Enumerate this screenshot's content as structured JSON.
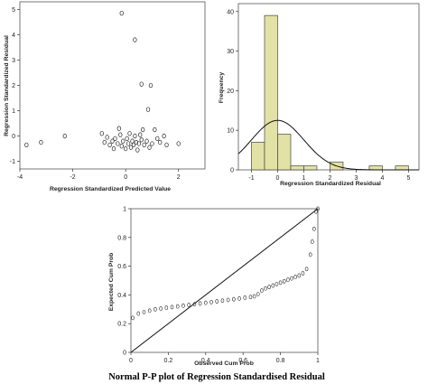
{
  "caption": "Normal P-P plot of Regression Standardised Residual",
  "chart_data": [
    {
      "type": "scatter",
      "xlabel": "Regression Standardized Predicted Value",
      "ylabel": "Regression Standardized Residual",
      "xlim": [
        -4,
        3
      ],
      "ylim": [
        -1.3,
        5.3
      ],
      "xticks": [
        -4,
        -2,
        0,
        2
      ],
      "yticks": [
        -1,
        0,
        1,
        2,
        3,
        4,
        5
      ],
      "marker": "open-circle",
      "points": [
        [
          -0.15,
          4.85
        ],
        [
          0.35,
          3.8
        ],
        [
          0.6,
          2.05
        ],
        [
          0.95,
          2.0
        ],
        [
          0.85,
          1.05
        ],
        [
          -3.75,
          -0.35
        ],
        [
          -3.2,
          -0.25
        ],
        [
          -2.3,
          0.0
        ],
        [
          -0.9,
          0.1
        ],
        [
          -0.8,
          -0.25
        ],
        [
          -0.7,
          -0.05
        ],
        [
          -0.6,
          -0.35
        ],
        [
          -0.5,
          -0.2
        ],
        [
          -0.45,
          -0.5
        ],
        [
          -0.4,
          -0.1
        ],
        [
          -0.3,
          -0.3
        ],
        [
          -0.2,
          0.05
        ],
        [
          -0.15,
          -0.4
        ],
        [
          -0.1,
          -0.2
        ],
        [
          0.0,
          -0.5
        ],
        [
          0.05,
          -0.1
        ],
        [
          0.1,
          -0.3
        ],
        [
          0.15,
          0.1
        ],
        [
          0.2,
          -0.45
        ],
        [
          0.25,
          -0.2
        ],
        [
          0.3,
          -0.35
        ],
        [
          0.35,
          0.0
        ],
        [
          0.4,
          -0.25
        ],
        [
          0.45,
          -0.55
        ],
        [
          0.5,
          -0.3
        ],
        [
          0.55,
          0.05
        ],
        [
          0.6,
          -0.15
        ],
        [
          0.7,
          -0.35
        ],
        [
          0.8,
          -0.2
        ],
        [
          0.9,
          -0.45
        ],
        [
          1.0,
          -0.3
        ],
        [
          1.1,
          0.25
        ],
        [
          1.2,
          -0.1
        ],
        [
          1.3,
          -0.25
        ],
        [
          1.45,
          0.0
        ],
        [
          1.55,
          -0.35
        ],
        [
          2.0,
          -0.3
        ],
        [
          -0.25,
          0.3
        ],
        [
          0.65,
          0.25
        ]
      ]
    },
    {
      "type": "bar",
      "subtype": "histogram-with-normal-curve",
      "xlabel": "Regression Standardized Residual",
      "ylabel": "Frequency",
      "xlim": [
        -1.5,
        5.4
      ],
      "ylim": [
        0,
        42
      ],
      "xticks": [
        -1,
        0,
        1,
        2,
        3,
        4,
        5
      ],
      "yticks": [
        0,
        10,
        20,
        30,
        40
      ],
      "bar_color": "#e2e2a4",
      "bins": [
        {
          "start": -1.0,
          "end": -0.5,
          "value": 7
        },
        {
          "start": -0.5,
          "end": 0.0,
          "value": 39
        },
        {
          "start": 0.0,
          "end": 0.5,
          "value": 9
        },
        {
          "start": 0.5,
          "end": 1.0,
          "value": 1
        },
        {
          "start": 1.0,
          "end": 1.5,
          "value": 1
        },
        {
          "start": 1.5,
          "end": 2.0,
          "value": 0
        },
        {
          "start": 2.0,
          "end": 2.5,
          "value": 2
        },
        {
          "start": 2.5,
          "end": 3.0,
          "value": 0
        },
        {
          "start": 3.0,
          "end": 3.5,
          "value": 0
        },
        {
          "start": 3.5,
          "end": 4.0,
          "value": 1
        },
        {
          "start": 4.0,
          "end": 4.5,
          "value": 0
        },
        {
          "start": 4.5,
          "end": 5.0,
          "value": 1
        }
      ],
      "normal_curve": {
        "mean": 0.0,
        "sd": 1.0,
        "peak": 12.5
      }
    },
    {
      "type": "line",
      "subtype": "normal-pp-plot",
      "xlabel": "Observed Cum Prob",
      "ylabel": "Expected Cum Prob",
      "xlim": [
        0,
        1
      ],
      "ylim": [
        0,
        1
      ],
      "xticks": [
        0.0,
        0.2,
        0.4,
        0.6,
        0.8,
        1.0
      ],
      "yticks": [
        0.0,
        0.2,
        0.4,
        0.6,
        0.8,
        1.0
      ],
      "reference_line": [
        [
          0,
          0
        ],
        [
          1,
          1
        ]
      ],
      "observed_series": [
        [
          0.01,
          0.24
        ],
        [
          0.04,
          0.27
        ],
        [
          0.07,
          0.28
        ],
        [
          0.1,
          0.29
        ],
        [
          0.13,
          0.3
        ],
        [
          0.16,
          0.305
        ],
        [
          0.19,
          0.31
        ],
        [
          0.22,
          0.315
        ],
        [
          0.25,
          0.32
        ],
        [
          0.28,
          0.325
        ],
        [
          0.31,
          0.33
        ],
        [
          0.34,
          0.335
        ],
        [
          0.37,
          0.34
        ],
        [
          0.4,
          0.345
        ],
        [
          0.43,
          0.35
        ],
        [
          0.46,
          0.355
        ],
        [
          0.49,
          0.36
        ],
        [
          0.52,
          0.365
        ],
        [
          0.55,
          0.37
        ],
        [
          0.58,
          0.375
        ],
        [
          0.61,
          0.38
        ],
        [
          0.64,
          0.385
        ],
        [
          0.66,
          0.39
        ],
        [
          0.68,
          0.405
        ],
        [
          0.7,
          0.43
        ],
        [
          0.72,
          0.445
        ],
        [
          0.74,
          0.455
        ],
        [
          0.76,
          0.465
        ],
        [
          0.78,
          0.475
        ],
        [
          0.8,
          0.485
        ],
        [
          0.82,
          0.495
        ],
        [
          0.84,
          0.505
        ],
        [
          0.86,
          0.515
        ],
        [
          0.88,
          0.525
        ],
        [
          0.9,
          0.535
        ],
        [
          0.92,
          0.55
        ],
        [
          0.94,
          0.58
        ],
        [
          0.96,
          0.68
        ],
        [
          0.97,
          0.77
        ],
        [
          0.98,
          0.86
        ],
        [
          0.99,
          0.98
        ],
        [
          1.0,
          1.0
        ]
      ]
    }
  ]
}
